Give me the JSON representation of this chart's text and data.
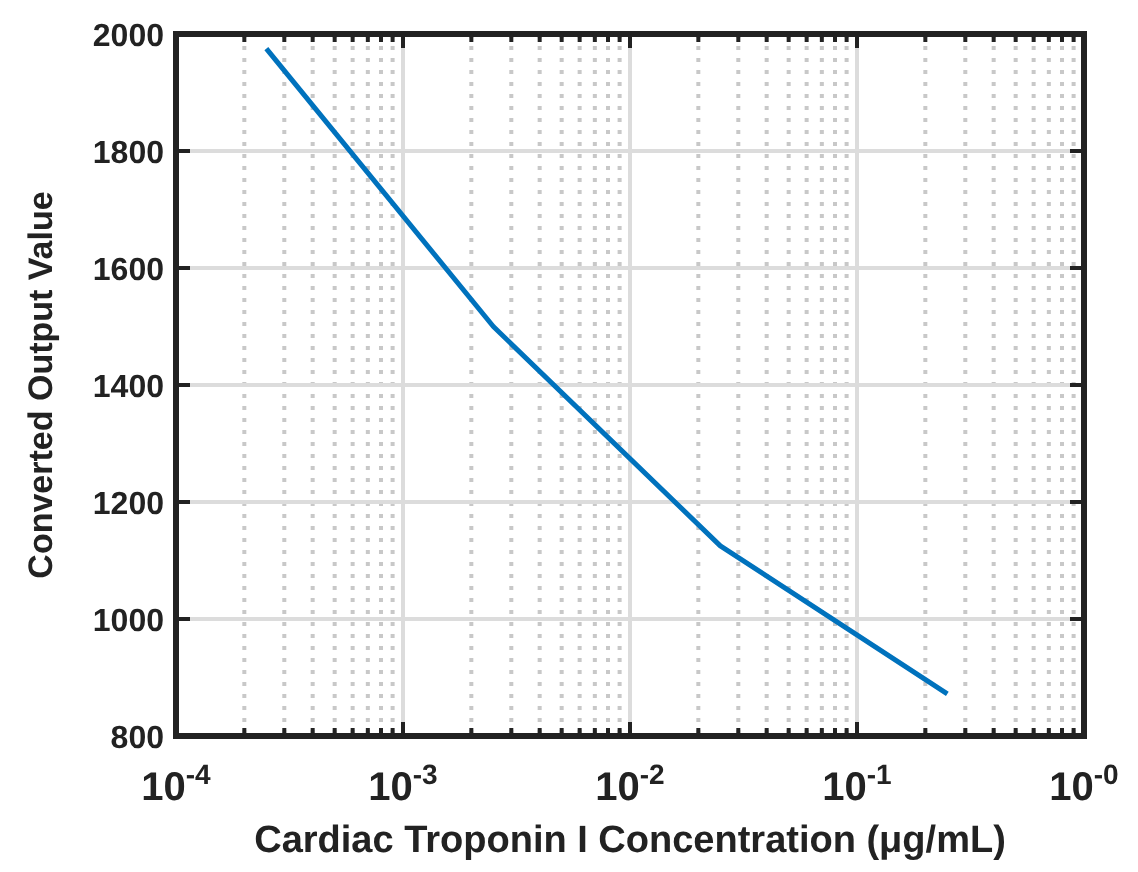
{
  "chart_data": {
    "type": "line",
    "xlabel": "Cardiac Troponin I Concentration (μg/mL)",
    "ylabel": "Converted Output Value",
    "log": "x",
    "grid": true,
    "xlim": [
      0.0001,
      1
    ],
    "xticks": [
      {
        "value": 0.0001,
        "label": "10$^{-4}$"
      },
      {
        "value": 0.001,
        "label": "10$^{-3}$"
      },
      {
        "value": 0.01,
        "label": "10$^{-2}$"
      },
      {
        "value": 0.1,
        "label": "10$^{-1}$"
      },
      {
        "value": 1,
        "label": "10$^{-0}$"
      }
    ],
    "ylim": [
      800,
      2000
    ],
    "yticks": [
      800,
      1000,
      1200,
      1400,
      1600,
      1800,
      2000
    ],
    "x": [
      0.00025,
      0.0025,
      0.025,
      0.25
    ],
    "series": [
      {
        "color": "#0072bd",
        "values": [
          1975,
          1500,
          1125,
          872
        ]
      }
    ]
  }
}
